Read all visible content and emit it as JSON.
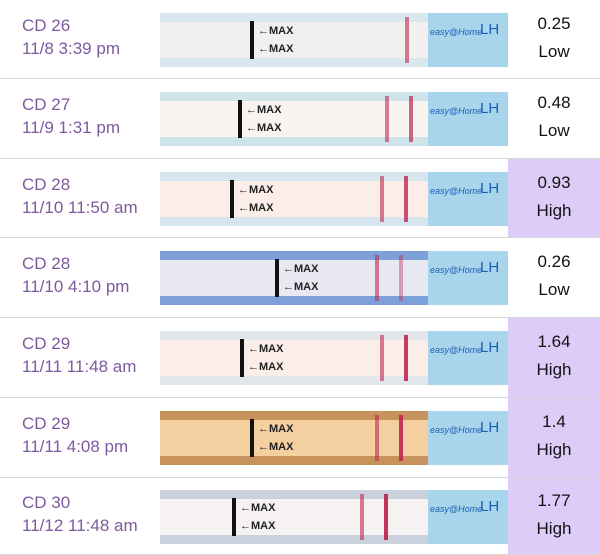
{
  "strip_labels": {
    "max": "←MAX",
    "test": "LH",
    "brand": "easy@Home"
  },
  "rows": [
    {
      "cycle_day": "CD 26",
      "datetime": "11/8 3:39 pm",
      "value": 0.25,
      "level": "Low"
    },
    {
      "cycle_day": "CD 27",
      "datetime": "11/9 1:31 pm",
      "value": 0.48,
      "level": "Low"
    },
    {
      "cycle_day": "CD 28",
      "datetime": "11/10 11:50 am",
      "value": 0.93,
      "level": "High"
    },
    {
      "cycle_day": "CD 28",
      "datetime": "11/10 4:10 pm",
      "value": 0.26,
      "level": "Low"
    },
    {
      "cycle_day": "CD 29",
      "datetime": "11/11 11:48 am",
      "value": 1.64,
      "level": "High"
    },
    {
      "cycle_day": "CD 29",
      "datetime": "11/11 4:08 pm",
      "value": 1.4,
      "level": "High"
    },
    {
      "cycle_day": "CD 30",
      "datetime": "11/12 11:48 am",
      "value": 1.77,
      "level": "High"
    }
  ]
}
